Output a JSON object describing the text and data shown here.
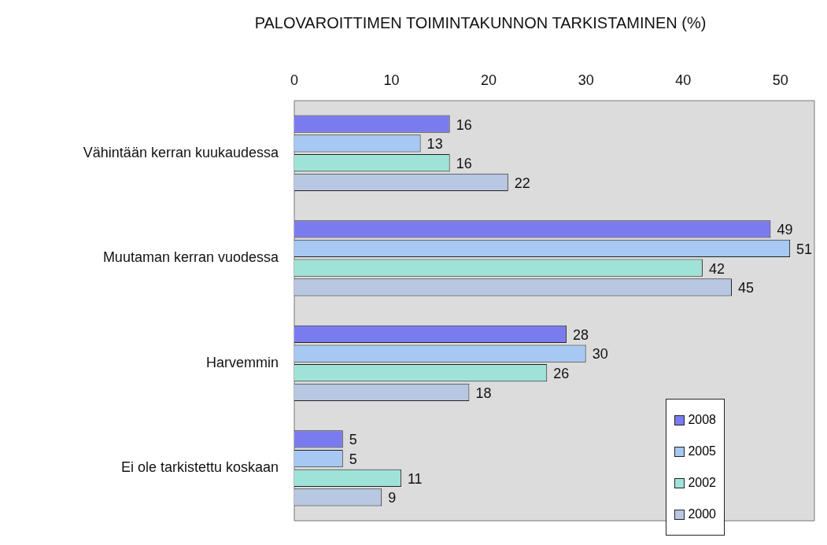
{
  "chart_data": {
    "type": "bar",
    "orientation": "horizontal",
    "title": "PALOVAROITTIMEN TOIMINTAKUNNON TARKISTAMINEN (%)",
    "categories": [
      "Vähintään kerran kuukaudessa",
      "Muutaman kerran vuodessa",
      "Harvemmin",
      "Ei ole tarkistettu koskaan"
    ],
    "series": [
      {
        "name": "2008",
        "color": "#7b7bf0",
        "values": [
          16,
          49,
          28,
          5
        ]
      },
      {
        "name": "2005",
        "color": "#a6c8f2",
        "values": [
          13,
          51,
          30,
          5
        ]
      },
      {
        "name": "2002",
        "color": "#9fe3d8",
        "values": [
          16,
          42,
          26,
          11
        ]
      },
      {
        "name": "2000",
        "color": "#b8c8e2",
        "values": [
          22,
          45,
          18,
          9
        ]
      }
    ],
    "xlim": [
      0,
      53.5
    ],
    "xticks": [
      0,
      10,
      20,
      30,
      40,
      50
    ],
    "grid": false,
    "legend": "bottom right",
    "data_labels": true
  }
}
